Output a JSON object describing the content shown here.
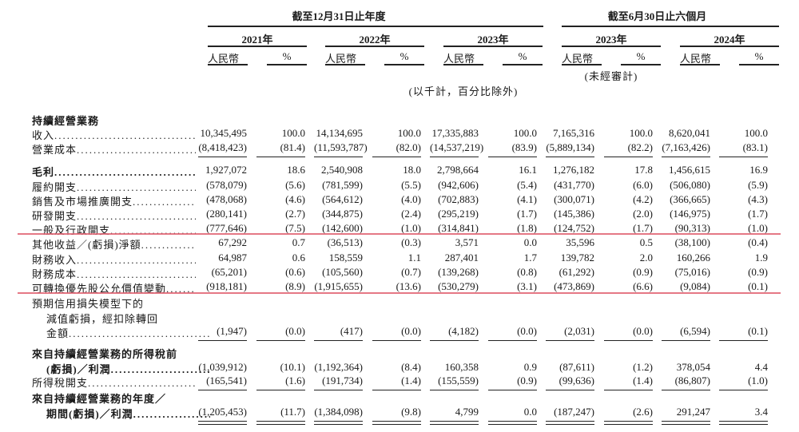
{
  "header": {
    "annual_period": "截至12月31日止年度",
    "interim_period": "截至6月30日止六個月",
    "years": [
      "2021年",
      "2022年",
      "2023年",
      "2023年",
      "2024年"
    ],
    "currency_label": "人民幣",
    "percent_label": "%",
    "unaudited": "(未經審計)",
    "unit_note": "(以千計，百分比除外)"
  },
  "rows": [
    {
      "label": [
        "持續經營業務"
      ],
      "bold": true,
      "values": []
    },
    {
      "label": [
        "收入"
      ],
      "values": [
        "10,345,495",
        "100.0",
        "14,134,695",
        "100.0",
        "17,335,883",
        "100.0",
        "7,165,316",
        "100.0",
        "8,620,041",
        "100.0"
      ]
    },
    {
      "label": [
        "營業成本"
      ],
      "values": [
        "(8,418,423)",
        "(81.4)",
        "(11,593,787)",
        "(82.0)",
        "(14,537,219)",
        "(83.9)",
        "(5,889,134)",
        "(82.2)",
        "(7,163,426)",
        "(83.1)"
      ],
      "rule": "single"
    },
    {
      "label": [
        "毛利"
      ],
      "bold": true,
      "values": [
        "1,927,072",
        "18.6",
        "2,540,908",
        "18.0",
        "2,798,664",
        "16.1",
        "1,276,182",
        "17.8",
        "1,456,615",
        "16.9"
      ]
    },
    {
      "label": [
        "履約開支"
      ],
      "values": [
        "(578,079)",
        "(5.6)",
        "(781,599)",
        "(5.5)",
        "(942,606)",
        "(5.4)",
        "(431,770)",
        "(6.0)",
        "(506,080)",
        "(5.9)"
      ]
    },
    {
      "label": [
        "銷售及市場推廣開支"
      ],
      "values": [
        "(478,068)",
        "(4.6)",
        "(564,612)",
        "(4.0)",
        "(702,883)",
        "(4.1)",
        "(300,071)",
        "(4.2)",
        "(366,665)",
        "(4.3)"
      ]
    },
    {
      "label": [
        "研發開支"
      ],
      "values": [
        "(280,141)",
        "(2.7)",
        "(344,875)",
        "(2.4)",
        "(295,219)",
        "(1.7)",
        "(145,386)",
        "(2.0)",
        "(146,975)",
        "(1.7)"
      ]
    },
    {
      "label": [
        "一般及行政開支"
      ],
      "values": [
        "(777,646)",
        "(7.5)",
        "(142,600)",
        "(1.0)",
        "(314,841)",
        "(1.8)",
        "(124,752)",
        "(1.7)",
        "(90,313)",
        "(1.0)"
      ]
    },
    {
      "label": [
        "其他收益／(虧損)淨額"
      ],
      "values": [
        "67,292",
        "0.7",
        "(36,513)",
        "(0.3)",
        "3,571",
        "0.0",
        "35,596",
        "0.5",
        "(38,100)",
        "(0.4)"
      ]
    },
    {
      "label": [
        "財務收入"
      ],
      "values": [
        "64,987",
        "0.6",
        "158,559",
        "1.1",
        "287,401",
        "1.7",
        "139,782",
        "2.0",
        "160,266",
        "1.9"
      ]
    },
    {
      "label": [
        "財務成本"
      ],
      "values": [
        "(65,201)",
        "(0.6)",
        "(105,560)",
        "(0.7)",
        "(139,268)",
        "(0.8)",
        "(61,292)",
        "(0.9)",
        "(75,016)",
        "(0.9)"
      ]
    },
    {
      "label": [
        "可轉換優先股公允價值變動"
      ],
      "values": [
        "(918,181)",
        "(8.9)",
        "(1,915,655)",
        "(13.6)",
        "(530,279)",
        "(3.1)",
        "(473,869)",
        "(6.6)",
        "(9,084)",
        "(0.1)"
      ]
    },
    {
      "label": [
        "預期信用損失模型下的",
        "減值虧損，經扣除轉回",
        "金額"
      ],
      "values": [
        "(1,947)",
        "(0.0)",
        "(417)",
        "(0.0)",
        "(4,182)",
        "(0.0)",
        "(2,031)",
        "(0.0)",
        "(6,594)",
        "(0.1)"
      ],
      "rule": "single"
    },
    {
      "label": [
        "來自持續經營業務的所得稅前",
        "(虧損)／利潤"
      ],
      "bold": true,
      "values": [
        "(1,039,912)",
        "(10.1)",
        "(1,192,364)",
        "(8.4)",
        "160,358",
        "0.9",
        "(87,611)",
        "(1.2)",
        "378,054",
        "4.4"
      ]
    },
    {
      "label": [
        "所得稅開支"
      ],
      "values": [
        "(165,541)",
        "(1.6)",
        "(191,734)",
        "(1.4)",
        "(155,559)",
        "(0.9)",
        "(99,636)",
        "(1.4)",
        "(86,807)",
        "(1.0)"
      ],
      "rule": "single"
    },
    {
      "label": [
        "來自持續經營業務的年度／",
        "期間(虧損)／利潤"
      ],
      "bold": true,
      "values": [
        "(1,205,453)",
        "(11.7)",
        "(1,384,098)",
        "(9.8)",
        "4,799",
        "0.0",
        "(187,247)",
        "(2.6)",
        "291,247",
        "3.4"
      ],
      "rule": "double"
    }
  ],
  "highlight_color": "#e06070"
}
